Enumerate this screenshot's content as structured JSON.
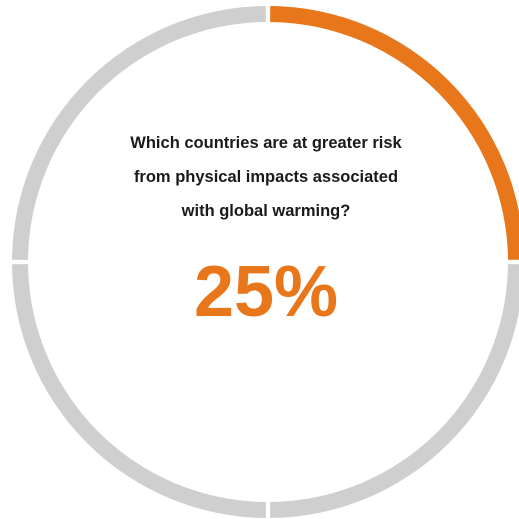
{
  "chart_data": {
    "type": "pie",
    "question_lines": [
      "Which countries are at greater risk",
      "from physical impacts associated",
      "with global warming?"
    ],
    "value_label": "25%",
    "highlight_fraction": 0.25,
    "segments": 4,
    "colors": {
      "highlight": "#E8761B",
      "track": "#CFCFCF",
      "text": "#1a1a1a"
    }
  }
}
